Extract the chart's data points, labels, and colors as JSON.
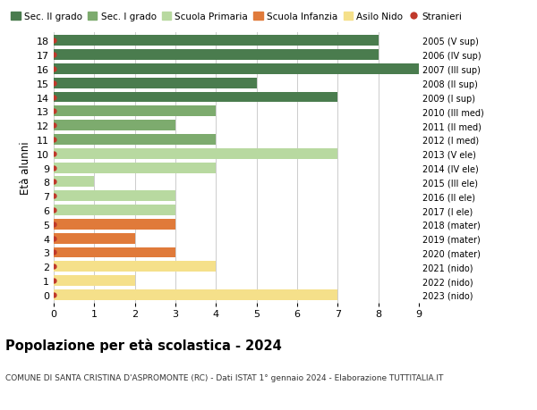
{
  "ages": [
    18,
    17,
    16,
    15,
    14,
    13,
    12,
    11,
    10,
    9,
    8,
    7,
    6,
    5,
    4,
    3,
    2,
    1,
    0
  ],
  "right_labels": [
    "2005 (V sup)",
    "2006 (IV sup)",
    "2007 (III sup)",
    "2008 (II sup)",
    "2009 (I sup)",
    "2010 (III med)",
    "2011 (II med)",
    "2012 (I med)",
    "2013 (V ele)",
    "2014 (IV ele)",
    "2015 (III ele)",
    "2016 (II ele)",
    "2017 (I ele)",
    "2018 (mater)",
    "2019 (mater)",
    "2020 (mater)",
    "2021 (nido)",
    "2022 (nido)",
    "2023 (nido)"
  ],
  "values": [
    8,
    8,
    9,
    5,
    7,
    4,
    3,
    4,
    7,
    4,
    1,
    3,
    3,
    3,
    2,
    3,
    4,
    2,
    7
  ],
  "bar_colors": [
    "#4a7c4e",
    "#4a7c4e",
    "#4a7c4e",
    "#4a7c4e",
    "#4a7c4e",
    "#7dab6e",
    "#7dab6e",
    "#7dab6e",
    "#b8d9a0",
    "#b8d9a0",
    "#b8d9a0",
    "#b8d9a0",
    "#b8d9a0",
    "#e07a3a",
    "#e07a3a",
    "#e07a3a",
    "#f5e08a",
    "#f5e08a",
    "#f5e08a"
  ],
  "legend_labels": [
    "Sec. II grado",
    "Sec. I grado",
    "Scuola Primaria",
    "Scuola Infanzia",
    "Asilo Nido",
    "Stranieri"
  ],
  "legend_colors": [
    "#4a7c4e",
    "#7dab6e",
    "#b8d9a0",
    "#e07a3a",
    "#f5e08a",
    "#c0392b"
  ],
  "xlabel_left": "Età alunni",
  "xlim": [
    0,
    9
  ],
  "xticks": [
    0,
    1,
    2,
    3,
    4,
    5,
    6,
    7,
    8,
    9
  ],
  "title": "Popolazione per età scolastica - 2024",
  "subtitle": "COMUNE DI SANTA CRISTINA D'ASPROMONTE (RC) - Dati ISTAT 1° gennaio 2024 - Elaborazione TUTTITALIA.IT",
  "bg_color": "#ffffff",
  "grid_color": "#cccccc",
  "dot_color": "#c0392b",
  "bar_height": 0.75
}
